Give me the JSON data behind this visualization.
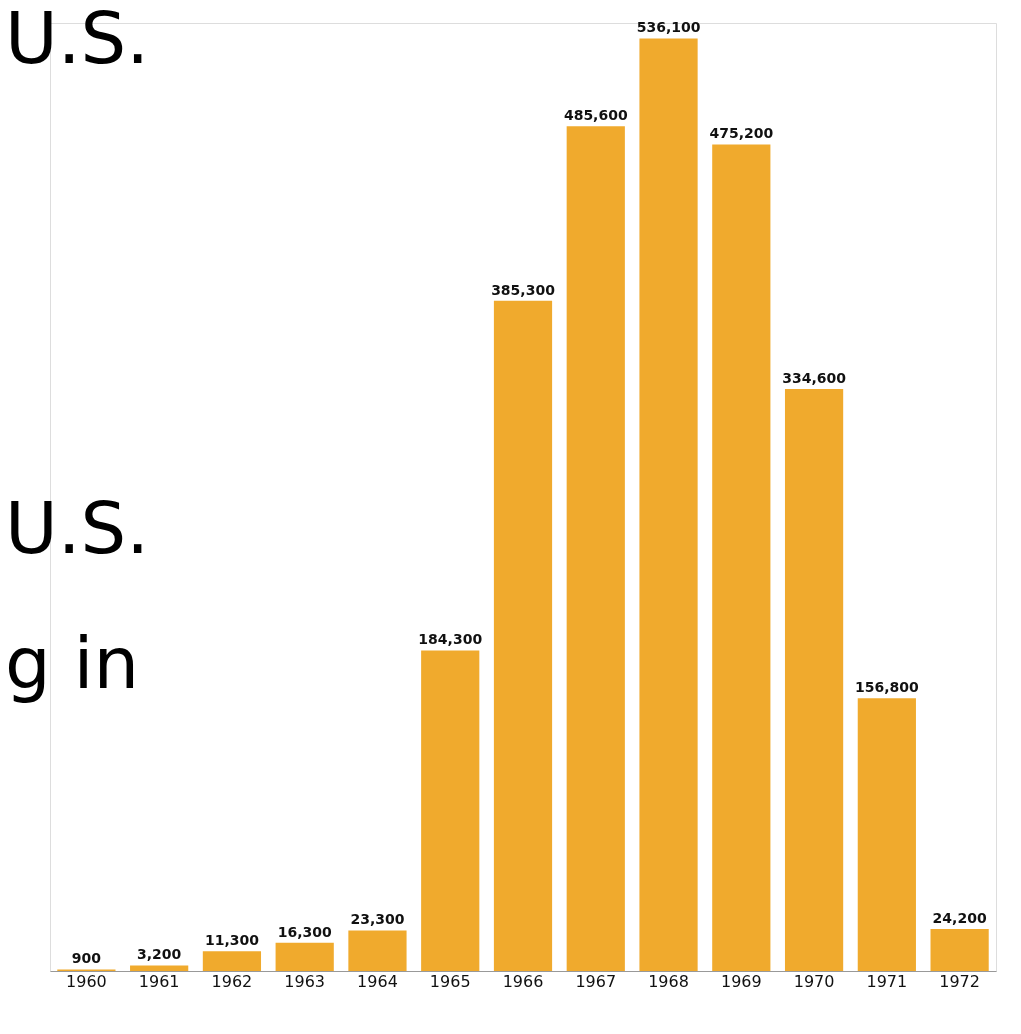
{
  "chart_data": {
    "type": "bar",
    "categories": [
      "1960",
      "1961",
      "1962",
      "1963",
      "1964",
      "1965",
      "1966",
      "1967",
      "1968",
      "1969",
      "1970",
      "1971",
      "1972"
    ],
    "values": [
      900,
      3200,
      11300,
      16300,
      23300,
      184300,
      385300,
      485600,
      536100,
      475200,
      334600,
      156800,
      24200
    ],
    "value_labels": [
      "900",
      "3,200",
      "11,300",
      "16,300",
      "23,300",
      "184,300",
      "385,300",
      "485,600",
      "536,100",
      "475,200",
      "334,600",
      "156,800",
      "24,200"
    ],
    "color": "#f0aa2d",
    "ylim": [
      0,
      545000
    ],
    "annotations": [
      "U.S.",
      "U.S.",
      "g in"
    ]
  }
}
